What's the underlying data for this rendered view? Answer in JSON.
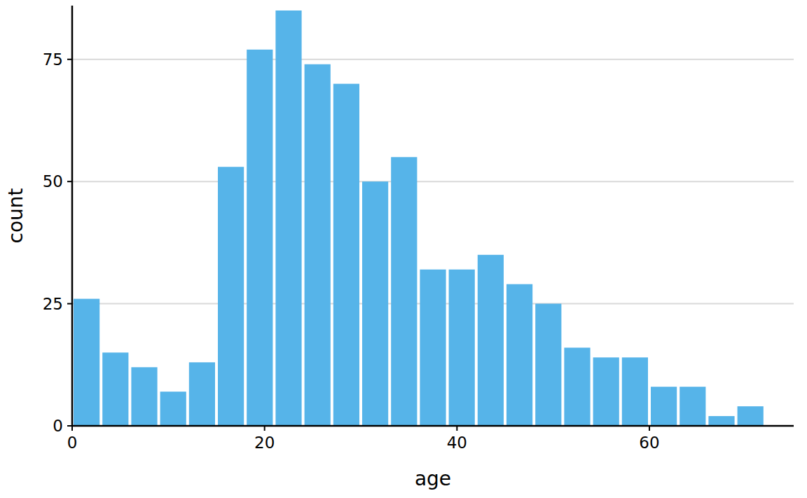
{
  "chart_data": {
    "type": "histogram",
    "x_label": "age",
    "y_label": "count",
    "bins": [
      0,
      3,
      6,
      9,
      12,
      15,
      18,
      21,
      24,
      27,
      30,
      33,
      36,
      39,
      42,
      45,
      48,
      51,
      54,
      57,
      60,
      63,
      66,
      69,
      72
    ],
    "values": [
      26,
      15,
      12,
      7,
      13,
      53,
      77,
      85,
      74,
      70,
      50,
      55,
      32,
      32,
      35,
      29,
      25,
      16,
      14,
      14,
      8,
      8,
      2,
      4
    ],
    "color": "#56b4e9",
    "xlim": [
      0,
      75
    ],
    "xticks": [
      0,
      20,
      40,
      60
    ],
    "ylim": [
      0,
      86
    ],
    "yticks": [
      0,
      25,
      50,
      75
    ],
    "grid": true
  }
}
